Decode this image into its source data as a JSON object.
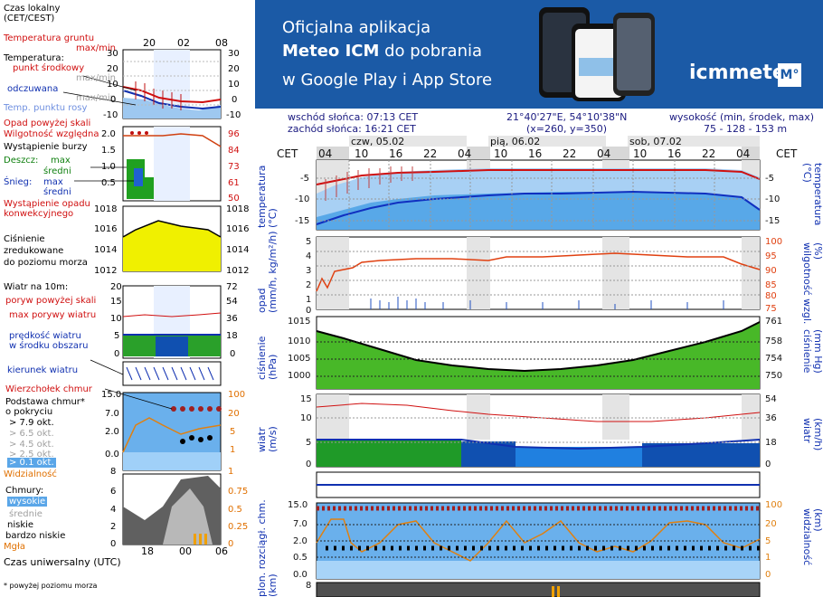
{
  "legend": {
    "time_label": "Czas lokalny\n(CET/CEST)",
    "time_ticks": [
      "20",
      "02",
      "08"
    ],
    "ground_temp": "Temperatura gruntu",
    "ground_maxmin": "max/min",
    "temperature": "Temperatura:",
    "mid_point": "punkt środkowy",
    "max_min": "max/min",
    "feels_like": "odczuwana",
    "dew_point": "Temp. punktu rosy",
    "temp_ticks": [
      "30",
      "20",
      "10",
      "0",
      "-10"
    ],
    "precip_above": "Opad powyżej skali",
    "rel_humidity": "Wilgotność względna",
    "storm": "Wystąpienie burzy",
    "rain_label": "Deszcz:",
    "rain_max": "max",
    "rain_mid": "średni",
    "snow_label": "Śnieg:",
    "snow_max": "max",
    "snow_mid": "średni",
    "convective": "Wystąpienie opadu\nkonwekcyjnego",
    "precip_ticks": [
      "2.0",
      "1.5",
      "1.0",
      "0.5"
    ],
    "humid_ticks": [
      "96",
      "84",
      "73",
      "61",
      "50"
    ],
    "pressure_label": "Ciśnienie\nzredukowane\ndo poziomu morza",
    "pressure_ticks": [
      "1018",
      "1016",
      "1014",
      "1012"
    ],
    "wind_label": "Wiatr na 10m:",
    "gust_above": "poryw powyżej skali",
    "max_gust": "max porywy wiatru",
    "wind_speed": "prędkość wiatru\nw środku obszaru",
    "wind_ticks": [
      "20",
      "15",
      "10",
      "5",
      "0"
    ],
    "wind_kmh_ticks": [
      "72",
      "54",
      "36",
      "18",
      "0"
    ],
    "wind_dir": "kierunek wiatru",
    "cloud_top": "Wierzchołek chmur",
    "cloud_base": "Podstawa chmur*\no pokryciu",
    "okt_79": "> 7.9 okt.",
    "okt_65": "> 6.5 okt.",
    "okt_45": "> 4.5 okt.",
    "okt_25": "> 2.5 okt.",
    "okt_01": "> 0.1 okt.",
    "cloud_ticks": [
      "15.0",
      "7.0",
      "2.0",
      "0.0"
    ],
    "cloud_right_ticks": [
      "100",
      "20",
      "5",
      "1"
    ],
    "visibility": "Widzialność",
    "clouds": "Chmury:",
    "cl_high": "wysokie",
    "cl_mid": "średnie",
    "cl_low": "niskie",
    "cl_vlow": "bardzo niskie",
    "fog": "Mgła",
    "cloud2_ticks": [
      "8",
      "6",
      "4",
      "2",
      "0"
    ],
    "cloud2_right": [
      "1",
      "0.75",
      "0.5",
      "0.25",
      "0"
    ],
    "utc_label": "Czas uniwersalny (UTC)",
    "utc_ticks": [
      "18",
      "00",
      "06"
    ],
    "footnote": "* powyżej poziomu morza"
  },
  "banner": {
    "line1": "Oficjalna aplikacja",
    "line2_bold": "Meteo ICM",
    "line2_rest": " do pobrania",
    "line3": "w Google Play i App Store",
    "brand": "icmmeteo",
    "badge": "M°"
  },
  "sun": {
    "sunrise": "wschód słońca: 07:13 CET",
    "sunset": "zachód słońca: 16:21 CET",
    "coords": "21°40'27\"E, 54°10'38\"N",
    "grid": "(x=260,  y=350)",
    "height_label": "wysokość (min, środek, max)",
    "height_vals": "75 - 128 - 153 m"
  },
  "main": {
    "tz": "CET",
    "days": [
      "czw, 05.02",
      "pią, 06.02",
      "sob, 07.02"
    ],
    "hours": [
      "04",
      "10",
      "16",
      "22",
      "04",
      "10",
      "16",
      "22",
      "04",
      "10",
      "16",
      "22",
      "04"
    ],
    "temp_left": [
      "-5",
      "-10",
      "-15"
    ],
    "temp_right": [
      "-5",
      "-10",
      "-15"
    ],
    "temp_ylabel": "temperatura\n(°C)",
    "precip_left": [
      "5",
      "4",
      "3",
      "2",
      "1",
      "0"
    ],
    "precip_right": [
      "100",
      "95",
      "90",
      "85",
      "80",
      "75"
    ],
    "precip_ylabel": "opad\n(mm/h, kg/m²/h)",
    "humid_ylabel": "(%)\nwilgotność wzgl.",
    "press_left": [
      "1015",
      "1010",
      "1005",
      "1000"
    ],
    "press_right": [
      "761",
      "758",
      "754",
      "750"
    ],
    "press_ylabel": "ciśnienie\n(hPa)",
    "press_ylabel_r": "(mm Hg)\nciśnienie",
    "wind_left": [
      "15",
      "10",
      "5",
      "0"
    ],
    "wind_right": [
      "54",
      "36",
      "18",
      "0"
    ],
    "wind_ylabel": "wiatr\n(m/s)",
    "wind_ylabel_r": "(km/h)\nwiatr",
    "cloud_left": [
      "15.0",
      "7.0",
      "2.0",
      "0.5",
      "0.0"
    ],
    "cloud_right": [
      "100",
      "20",
      "5",
      "1",
      "0"
    ],
    "cloud_ylabel": "plon. rozciągł. chm.\n(km)",
    "vis_ylabel": "(km)\nwidzialność",
    "bottom_left": "8"
  }
}
